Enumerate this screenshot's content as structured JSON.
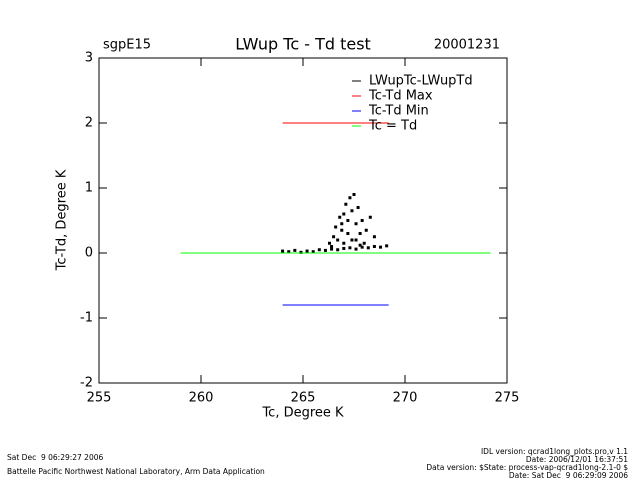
{
  "chart_data": {
    "type": "scatter",
    "title": "LWup Tc - Td test",
    "site": "sgpE15",
    "date": "20001231",
    "x_label": "Tc, Degree K",
    "y_label": "Tc-Td, Degree K",
    "xlim": [
      255,
      275
    ],
    "xticks": [
      255,
      260,
      265,
      270,
      275
    ],
    "ylim": [
      -2,
      3
    ],
    "yticks": [
      -2,
      -1,
      0,
      1,
      2,
      3
    ],
    "series": [
      {
        "name": "LWupTc-LWupTd",
        "color": "#000000",
        "style": "points",
        "x": [
          264.0,
          264.3,
          264.6,
          264.9,
          265.2,
          265.5,
          265.8,
          266.1,
          266.4,
          266.7,
          267.0,
          267.3,
          267.6,
          267.9,
          268.2,
          268.5,
          268.8,
          269.1,
          266.3,
          266.5,
          266.6,
          266.8,
          266.9,
          267.0,
          267.1,
          267.2,
          267.3,
          267.4,
          267.5,
          267.6,
          267.7,
          267.8,
          266.7,
          267.0,
          267.4,
          267.9,
          268.1,
          268.3,
          268.5,
          268.0,
          266.9,
          267.2,
          267.6,
          266.4,
          267.8
        ],
        "values": [
          0.03,
          0.02,
          0.04,
          0.01,
          0.03,
          0.02,
          0.05,
          0.04,
          0.06,
          0.05,
          0.07,
          0.08,
          0.06,
          0.09,
          0.08,
          0.1,
          0.09,
          0.11,
          0.15,
          0.25,
          0.4,
          0.55,
          0.35,
          0.6,
          0.75,
          0.5,
          0.85,
          0.65,
          0.9,
          0.45,
          0.7,
          0.3,
          0.2,
          0.15,
          0.2,
          0.5,
          0.35,
          0.55,
          0.25,
          0.15,
          0.45,
          0.3,
          0.2,
          0.1,
          0.12
        ]
      },
      {
        "name": "Tc-Td Max",
        "color": "#ff0000",
        "style": "line",
        "x": [
          264,
          269.2
        ],
        "values": [
          2,
          2
        ]
      },
      {
        "name": "Tc-Td Min",
        "color": "#0000ff",
        "style": "line",
        "x": [
          264,
          269.2
        ],
        "values": [
          -0.8,
          -0.8
        ]
      },
      {
        "name": "Tc = Td",
        "color": "#00ff00",
        "style": "line",
        "x": [
          259,
          274.2
        ],
        "values": [
          0,
          0
        ]
      }
    ]
  },
  "footer": {
    "timestamp": "Sat Dec  9 06:29:27 2006",
    "credit": "Battelle Pacific Northwest National Laboratory, Arm Data Application",
    "idl_version": "IDL version: qcrad1long_plots.pro,v 1.1",
    "idl_date": "Date: 2006/12/01 16:37:51",
    "data_version": "Data version: $State: process-vap-qcrad1long-2.1-0 $",
    "data_date": "Date: Sat Dec  9 06:29:09 2006"
  }
}
